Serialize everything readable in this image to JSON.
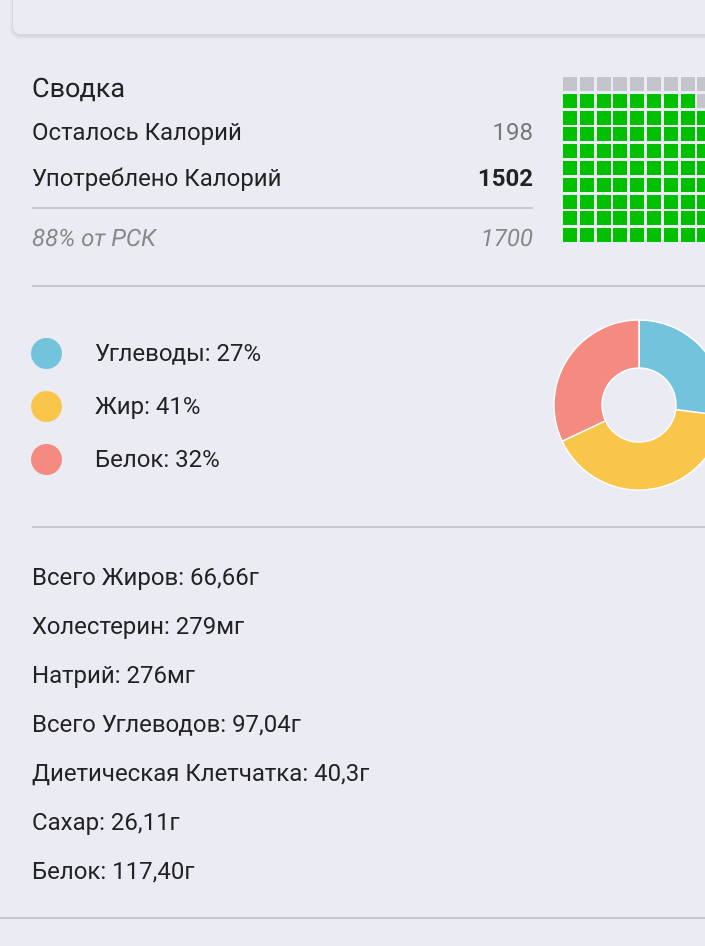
{
  "summary": {
    "title": "Сводка",
    "remaining_label": "Осталось Калорий",
    "remaining_value": "198",
    "consumed_label": "Употреблено Калорий",
    "consumed_value": "1502",
    "percent_label": "88% от РСК",
    "goal_value": "1700",
    "grid_percent": 88,
    "grid_fill_color": "#00c000",
    "grid_empty_color": "#c4c4cc"
  },
  "macros": [
    {
      "label": "Углеводы: 27%",
      "percent": 27,
      "color": "#74c3dc"
    },
    {
      "label": "Жир: 41%",
      "percent": 41,
      "color": "#f9c54b"
    },
    {
      "label": "Белок: 32%",
      "percent": 32,
      "color": "#f48a80"
    }
  ],
  "nutrients": [
    "Всего Жиров: 66,66г",
    "Холестерин: 279мг",
    "Натрий: 276мг",
    "Всего Углеводов: 97,04г",
    "Диетическая Клетчатка: 40,3г",
    "Сахар: 26,11г",
    "Белок: 117,40г"
  ]
}
